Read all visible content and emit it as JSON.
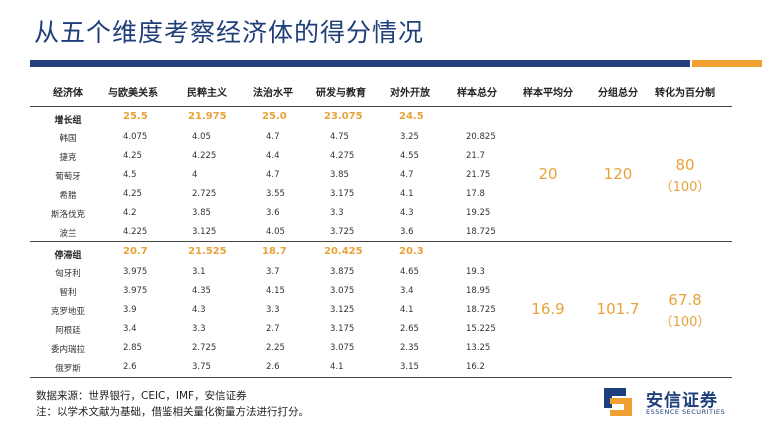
{
  "title": "从五个维度考察经济体的得分情况",
  "headers": [
    "经济体",
    "与欧美关系",
    "民粹主义",
    "法治水平",
    "研发与教育",
    "对外开放",
    "样本总分",
    "样本平均分",
    "分组总分",
    "转化为百分制"
  ],
  "growth": {
    "group_label": "增长组",
    "group_values": [
      "25.5",
      "21.975",
      "25.0",
      "23.075",
      "24.5"
    ],
    "rows": [
      {
        "name": "韩国",
        "vals": [
          "4.075",
          "4.05",
          "4.7",
          "4.75",
          "3.25",
          "20.825"
        ]
      },
      {
        "name": "捷克",
        "vals": [
          "4.25",
          "4.225",
          "4.4",
          "4.275",
          "4.55",
          "21.7"
        ]
      },
      {
        "name": "葡萄牙",
        "vals": [
          "4.5",
          "4",
          "4.7",
          "3.85",
          "4.7",
          "21.75"
        ]
      },
      {
        "name": "希腊",
        "vals": [
          "4.25",
          "2.725",
          "3.55",
          "3.175",
          "4.1",
          "17.8"
        ]
      },
      {
        "name": "斯洛伐克",
        "vals": [
          "4.2",
          "3.85",
          "3.6",
          "3.3",
          "4.3",
          "19.25"
        ]
      },
      {
        "name": "波兰",
        "vals": [
          "4.225",
          "3.125",
          "4.05",
          "3.725",
          "3.6",
          "18.725"
        ]
      }
    ],
    "avg": "20",
    "total": "120",
    "pct": "80",
    "pct_base": "（100）"
  },
  "stagnant": {
    "group_label": "停滞组",
    "group_values": [
      "20.7",
      "21.525",
      "18.7",
      "20.425",
      "20.3"
    ],
    "rows": [
      {
        "name": "匈牙利",
        "vals": [
          "3.975",
          "3.1",
          "3.7",
          "3.875",
          "4.65",
          "19.3"
        ]
      },
      {
        "name": "智利",
        "vals": [
          "3.975",
          "4.35",
          "4.15",
          "3.075",
          "3.4",
          "18.95"
        ]
      },
      {
        "name": "克罗地亚",
        "vals": [
          "3.9",
          "4.3",
          "3.3",
          "3.125",
          "4.1",
          "18.725"
        ]
      },
      {
        "name": "阿根廷",
        "vals": [
          "3.4",
          "3.3",
          "2.7",
          "3.175",
          "2.65",
          "15.225"
        ]
      },
      {
        "name": "委内瑞拉",
        "vals": [
          "2.85",
          "2.725",
          "2.25",
          "3.075",
          "2.35",
          "13.25"
        ]
      },
      {
        "name": "俄罗斯",
        "vals": [
          "2.6",
          "3.75",
          "2.6",
          "4.1",
          "3.15",
          "16.2"
        ]
      }
    ],
    "avg": "16.9",
    "total": "101.7",
    "pct": "67.8",
    "pct_base": "（100）"
  },
  "source_line": "数据来源：世界银行，CEIC，IMF，安信证券",
  "note_line": "注：以学术文献为基础，借鉴相关量化衡量方法进行打分。",
  "logo": {
    "name": "安信证券",
    "sub": "ESSENCE SECURITIES"
  },
  "colors": {
    "primary": "#243f7d",
    "accent": "#f0a030",
    "highlight": "#e8a23a"
  }
}
